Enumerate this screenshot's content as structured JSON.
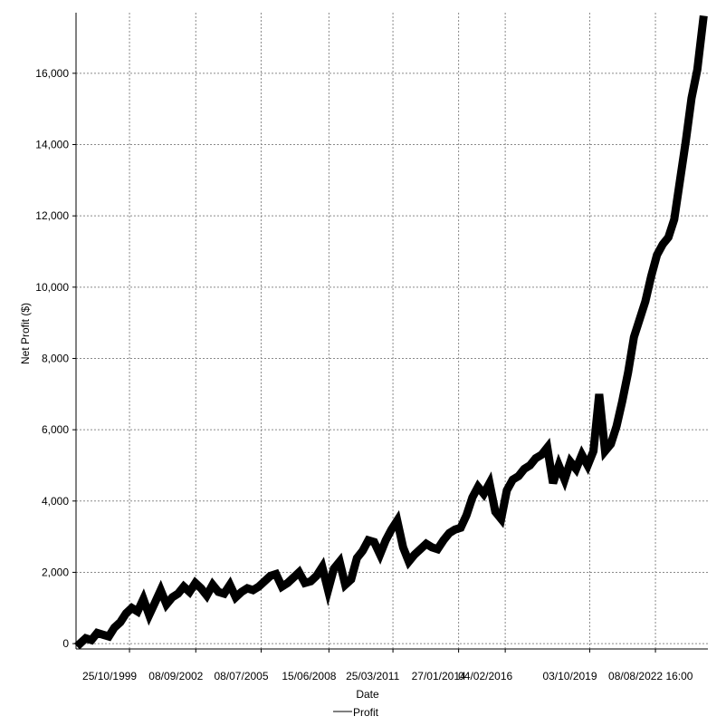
{
  "chart_data": {
    "type": "line",
    "title": "",
    "xlabel": "Date",
    "ylabel": "Net Profit ($)",
    "legend": {
      "placement": "bottom-center",
      "entries": [
        "Profit"
      ]
    },
    "grid": true,
    "ylim": [
      -150,
      17700
    ],
    "yticks": [
      0,
      2000,
      4000,
      6000,
      8000,
      10000,
      12000,
      14000,
      16000
    ],
    "ytick_labels": [
      "0",
      "2,000",
      "4,000",
      "6,000",
      "8,000",
      "10,000",
      "12,000",
      "14,000",
      "16,000"
    ],
    "xticks": [
      {
        "label": "25/10/1999",
        "date": "1999-10-25"
      },
      {
        "label": "08/09/2002",
        "date": "2002-09-08"
      },
      {
        "label": "08/07/2005",
        "date": "2005-07-08"
      },
      {
        "label": "15/06/2008",
        "date": "2008-06-15"
      },
      {
        "label": "25/03/2011",
        "date": "2011-03-25"
      },
      {
        "label": "27/01/2014",
        "date": "2014-01-27"
      },
      {
        "label": "04/02/2016",
        "date": "2016-02-04"
      },
      {
        "label": "03/10/2019",
        "date": "2019-10-03"
      },
      {
        "label": "08/08/2022 16:00",
        "date": "2022-08-08"
      }
    ],
    "xlim": [
      "1997-07-01",
      "2024-11-15"
    ],
    "series": [
      {
        "name": "Profit",
        "color": "#000000",
        "x": [
          "1997-09-01",
          "1997-12-01",
          "1998-03-01",
          "1998-06-01",
          "1998-09-01",
          "1998-12-01",
          "1999-03-01",
          "1999-06-01",
          "1999-09-01",
          "1999-12-01",
          "2000-03-01",
          "2000-06-01",
          "2000-09-01",
          "2000-12-01",
          "2001-03-01",
          "2001-06-01",
          "2001-09-01",
          "2001-12-01",
          "2002-03-01",
          "2002-06-01",
          "2002-09-01",
          "2002-12-01",
          "2003-03-01",
          "2003-06-01",
          "2003-09-01",
          "2003-12-01",
          "2004-03-01",
          "2004-06-01",
          "2004-09-01",
          "2004-12-01",
          "2005-03-01",
          "2005-06-01",
          "2005-09-01",
          "2005-12-01",
          "2006-03-01",
          "2006-06-01",
          "2006-09-01",
          "2006-12-01",
          "2007-03-01",
          "2007-06-01",
          "2007-09-01",
          "2007-12-01",
          "2008-03-01",
          "2008-06-01",
          "2008-09-01",
          "2008-12-01",
          "2009-03-01",
          "2009-06-01",
          "2009-09-01",
          "2009-12-01",
          "2010-03-01",
          "2010-06-01",
          "2010-09-01",
          "2010-12-01",
          "2011-03-01",
          "2011-06-01",
          "2011-09-01",
          "2011-12-01",
          "2012-03-01",
          "2012-06-01",
          "2012-09-01",
          "2012-12-01",
          "2013-03-01",
          "2013-06-01",
          "2013-09-01",
          "2013-12-01",
          "2014-03-01",
          "2014-06-01",
          "2014-09-01",
          "2014-12-01",
          "2015-03-01",
          "2015-06-01",
          "2015-09-01",
          "2015-12-01",
          "2016-03-01",
          "2016-06-01",
          "2016-09-01",
          "2016-12-01",
          "2017-03-01",
          "2017-06-01",
          "2017-09-01",
          "2017-12-01",
          "2018-03-01",
          "2018-06-01",
          "2018-09-01",
          "2018-12-01",
          "2019-03-01",
          "2019-06-01",
          "2019-09-01",
          "2019-12-01",
          "2020-03-01",
          "2020-06-01",
          "2020-09-01",
          "2020-12-01",
          "2021-03-01",
          "2021-06-01",
          "2021-09-01",
          "2021-12-01",
          "2022-03-01",
          "2022-06-01",
          "2022-09-01",
          "2022-12-01",
          "2023-03-01",
          "2023-06-01",
          "2023-09-01",
          "2023-12-01",
          "2024-03-01",
          "2024-06-01",
          "2024-09-01"
        ],
        "values": [
          0,
          150,
          100,
          300,
          250,
          200,
          450,
          600,
          850,
          1000,
          900,
          1250,
          800,
          1150,
          1500,
          1100,
          1300,
          1400,
          1600,
          1450,
          1700,
          1550,
          1350,
          1650,
          1450,
          1400,
          1650,
          1300,
          1450,
          1550,
          1500,
          1600,
          1750,
          1900,
          1950,
          1600,
          1700,
          1850,
          2000,
          1700,
          1750,
          1900,
          2150,
          1500,
          2100,
          2300,
          1650,
          1800,
          2400,
          2600,
          2900,
          2850,
          2500,
          2900,
          3200,
          3450,
          2700,
          2300,
          2500,
          2650,
          2800,
          2700,
          2650,
          2900,
          3100,
          3200,
          3250,
          3600,
          4100,
          4400,
          4200,
          4500,
          3700,
          3500,
          4300,
          4600,
          4700,
          4900,
          5000,
          5200,
          5300,
          5500,
          4500,
          5000,
          4600,
          5100,
          4900,
          5300,
          5000,
          5400,
          7000,
          5400,
          5600,
          6100,
          6800,
          7600,
          8600,
          9100,
          9600,
          10300,
          10900,
          11200,
          11400,
          11900,
          13000,
          14100,
          15300,
          16100,
          17500
        ]
      }
    ]
  }
}
